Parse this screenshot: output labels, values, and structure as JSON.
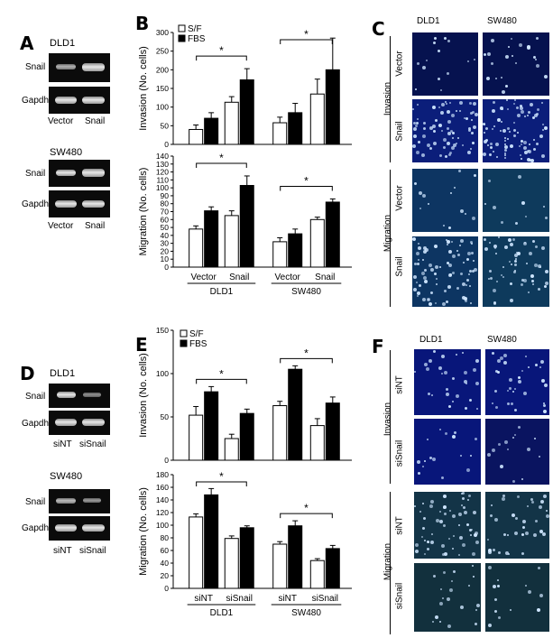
{
  "panels": {
    "A": {
      "letter": "A",
      "blots": [
        {
          "cell_line": "DLD1",
          "rows": [
            "Snail",
            "Gapdh"
          ],
          "lanes": [
            "Vector",
            "Snail"
          ]
        },
        {
          "cell_line": "SW480",
          "rows": [
            "Snail",
            "Gapdh"
          ],
          "lanes": [
            "Vector",
            "Snail"
          ]
        }
      ]
    },
    "B": {
      "letter": "B"
    },
    "C": {
      "letter": "C",
      "columns": [
        "DLD1",
        "SW480"
      ],
      "groups": [
        "Invasion",
        "Migration"
      ],
      "rows": [
        "Vector",
        "Snail"
      ]
    },
    "D": {
      "letter": "D",
      "blots": [
        {
          "cell_line": "DLD1",
          "rows": [
            "Snail",
            "Gapdh"
          ],
          "lanes": [
            "siNT",
            "siSnail"
          ]
        },
        {
          "cell_line": "SW480",
          "rows": [
            "Snail",
            "Gapdh"
          ],
          "lanes": [
            "siNT",
            "siSnail"
          ]
        }
      ]
    },
    "E": {
      "letter": "E"
    },
    "F": {
      "letter": "F",
      "columns": [
        "DLD1",
        "SW480"
      ],
      "groups": [
        "Invasion",
        "Migration"
      ],
      "rows": [
        "siNT",
        "siSnail"
      ]
    }
  },
  "colors": {
    "sf_bar": "#ffffff",
    "fbs_bar": "#000000",
    "micro_bg": "#0a1a6e",
    "micro_bg_migration": "#123a58"
  },
  "chart_data": [
    {
      "panel": "B-top",
      "type": "bar",
      "legend": [
        "S/F",
        "FBS"
      ],
      "legend_position": "top-left",
      "ylabel": "Invasion  (No. cells)",
      "ylim": [
        0,
        300
      ],
      "yticks": [
        "0",
        "50",
        "100",
        "150",
        "200",
        "250",
        "300"
      ],
      "categories": [
        "Vector",
        "Snail",
        "Vector",
        "Snail"
      ],
      "series": [
        {
          "name": "S/F",
          "values": [
            40,
            113,
            58,
            135
          ],
          "errors": [
            12,
            15,
            15,
            40
          ]
        },
        {
          "name": "FBS",
          "values": [
            70,
            173,
            85,
            200
          ],
          "errors": [
            15,
            30,
            25,
            85
          ]
        }
      ],
      "significance": [
        "*",
        "*"
      ]
    },
    {
      "panel": "B-bottom",
      "type": "bar",
      "ylabel": "Migration  (No. cells)",
      "ylim": [
        0,
        140
      ],
      "yticks": [
        "0",
        "10",
        "20",
        "30",
        "40",
        "50",
        "60",
        "70",
        "80",
        "90",
        "100",
        "110",
        "120",
        "130",
        "140"
      ],
      "categories": [
        "Vector",
        "Snail",
        "Vector",
        "Snail"
      ],
      "groups": [
        "DLD1",
        "SW480"
      ],
      "series": [
        {
          "name": "S/F",
          "values": [
            48,
            65,
            32,
            60
          ],
          "errors": [
            4,
            6,
            5,
            3
          ]
        },
        {
          "name": "FBS",
          "values": [
            71,
            103,
            42,
            82
          ],
          "errors": [
            5,
            12,
            6,
            4
          ]
        }
      ],
      "significance": [
        "*",
        "*"
      ]
    },
    {
      "panel": "E-top",
      "type": "bar",
      "legend": [
        "S/F",
        "FBS"
      ],
      "legend_position": "top-left",
      "ylabel": "Invasion  (No. cells)",
      "ylim": [
        0,
        150
      ],
      "yticks": [
        "0",
        "50",
        "100",
        "150"
      ],
      "categories": [
        "siNT",
        "siSnail",
        "siNT",
        "siSnail"
      ],
      "series": [
        {
          "name": "S/F",
          "values": [
            52,
            25,
            63,
            40
          ],
          "errors": [
            10,
            5,
            5,
            8
          ]
        },
        {
          "name": "FBS",
          "values": [
            79,
            54,
            105,
            66
          ],
          "errors": [
            6,
            5,
            4,
            7
          ]
        }
      ],
      "significance": [
        "*",
        "*"
      ]
    },
    {
      "panel": "E-bottom",
      "type": "bar",
      "ylabel": "Migration  (No. cells)",
      "ylim": [
        0,
        180
      ],
      "yticks": [
        "0",
        "20",
        "40",
        "60",
        "80",
        "100",
        "120",
        "140",
        "160",
        "180"
      ],
      "categories": [
        "siNT",
        "siSnail",
        "siNT",
        "siSnail"
      ],
      "groups": [
        "DLD1",
        "SW480"
      ],
      "series": [
        {
          "name": "S/F",
          "values": [
            113,
            79,
            70,
            44
          ],
          "errors": [
            5,
            4,
            4,
            3
          ]
        },
        {
          "name": "FBS",
          "values": [
            148,
            96,
            99,
            63
          ],
          "errors": [
            10,
            3,
            8,
            5
          ]
        }
      ],
      "significance": [
        "*",
        "*"
      ]
    }
  ]
}
